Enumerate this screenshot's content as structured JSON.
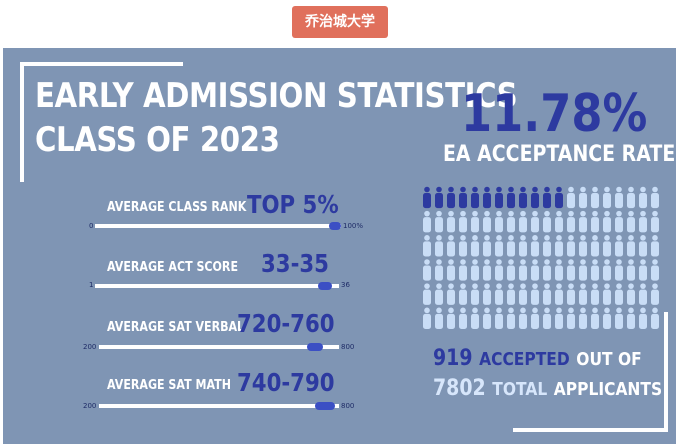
{
  "header": {
    "badge_text": "乔治城大学"
  },
  "infographic": {
    "title_line1": "EARLY ADMISSION STATISTICS",
    "title_line2": "CLASS OF 2023",
    "acceptance_rate": "11.78%",
    "acceptance_label": "EA ACCEPTANCE RATE",
    "accepted_count": "919",
    "accepted_word": "ACCEPTED",
    "out_of_word": "OUT OF",
    "total_count": "7802",
    "total_word": "TOTAL",
    "applicants_word": "APPLICANTS",
    "icon_grid": {
      "icon": "person-icon",
      "rows": 6,
      "cols": 20,
      "highlighted": 12,
      "highlight_color": "#2d3aa0",
      "base_color": "#c9ddf6"
    },
    "stats": [
      {
        "label": "AVERAGE CLASS RANK",
        "value": "TOP 5%",
        "min": "0",
        "max": "100%",
        "fill_start": 0.95,
        "fill_end": 1.0
      },
      {
        "label": "AVERAGE ACT SCORE",
        "value": "33-35",
        "min": "1",
        "max": "36",
        "fill_start": 0.9143,
        "fill_end": 0.9714
      },
      {
        "label": "AVERAGE SAT VERBAL",
        "value": "720-760",
        "min": "200",
        "max": "800",
        "fill_start": 0.8667,
        "fill_end": 0.9333
      },
      {
        "label": "AVERAGE SAT MATH",
        "value": "740-790",
        "min": "200",
        "max": "800",
        "fill_start": 0.9,
        "fill_end": 0.9833
      }
    ]
  }
}
